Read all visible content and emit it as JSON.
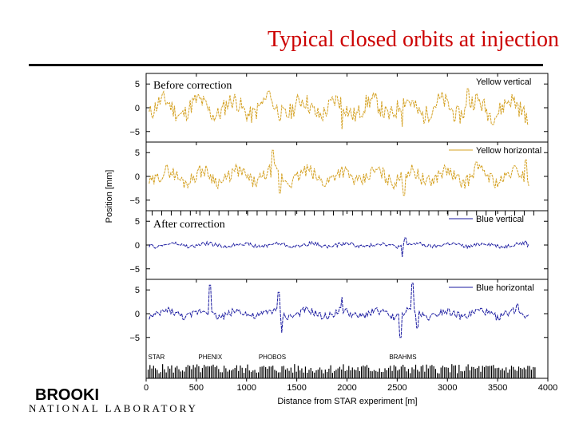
{
  "slide": {
    "title": "Typical closed orbits at injection",
    "logo_top": "BROOKI",
    "logo_bottom": "NATIONAL LABORATORY"
  },
  "chart_data": {
    "type": "line",
    "xlabel": "Distance from STAR experiment [m]",
    "ylabel": "Position [mm]",
    "xlim": [
      0,
      4000
    ],
    "x_ticks": [
      0,
      500,
      1000,
      1500,
      2000,
      2500,
      3000,
      3500,
      4000
    ],
    "ylim": [
      -6.5,
      6.5
    ],
    "y_ticks": [
      5,
      0,
      -5
    ],
    "colors": {
      "yellow": "#d4a020",
      "blue": "#1a1aa0"
    },
    "annotations": {
      "before": "Before correction",
      "after": "After correction"
    },
    "markers": [
      {
        "label": "STAR",
        "x": 20
      },
      {
        "label": "PHENIX",
        "x": 520
      },
      {
        "label": "PHOBOS",
        "x": 1120
      },
      {
        "label": "BRAHMS",
        "x": 2420
      }
    ],
    "panels": [
      {
        "name": "Yellow vertical",
        "color": "yellow",
        "amplitude": 3.0,
        "seed": 11,
        "spikes": [
          [
            1220,
            3.5
          ],
          [
            1950,
            -4.5
          ],
          [
            2550,
            -4.0
          ],
          [
            3200,
            4.0
          ],
          [
            3800,
            -3.5
          ]
        ]
      },
      {
        "name": "Yellow horizontal",
        "color": "yellow",
        "amplitude": 2.2,
        "seed": 29,
        "spikes": [
          [
            1260,
            5.5
          ],
          [
            1330,
            -3.5
          ],
          [
            2570,
            -4.0
          ],
          [
            3290,
            3.0
          ],
          [
            3780,
            3.5
          ]
        ]
      },
      {
        "name": "Blue vertical",
        "color": "blue",
        "amplitude": 0.6,
        "seed": 47,
        "spikes": [
          [
            2550,
            -2.5
          ],
          [
            2580,
            1.5
          ],
          [
            3780,
            0.8
          ]
        ]
      },
      {
        "name": "Blue horizontal",
        "color": "blue",
        "amplitude": 1.2,
        "seed": 73,
        "spikes": [
          [
            640,
            6.0
          ],
          [
            1320,
            4.5
          ],
          [
            1350,
            -4.0
          ],
          [
            1950,
            3.5
          ],
          [
            2650,
            6.5
          ],
          [
            2530,
            -5.0
          ],
          [
            2700,
            -3.0
          ],
          [
            3700,
            2.0
          ]
        ]
      }
    ]
  }
}
